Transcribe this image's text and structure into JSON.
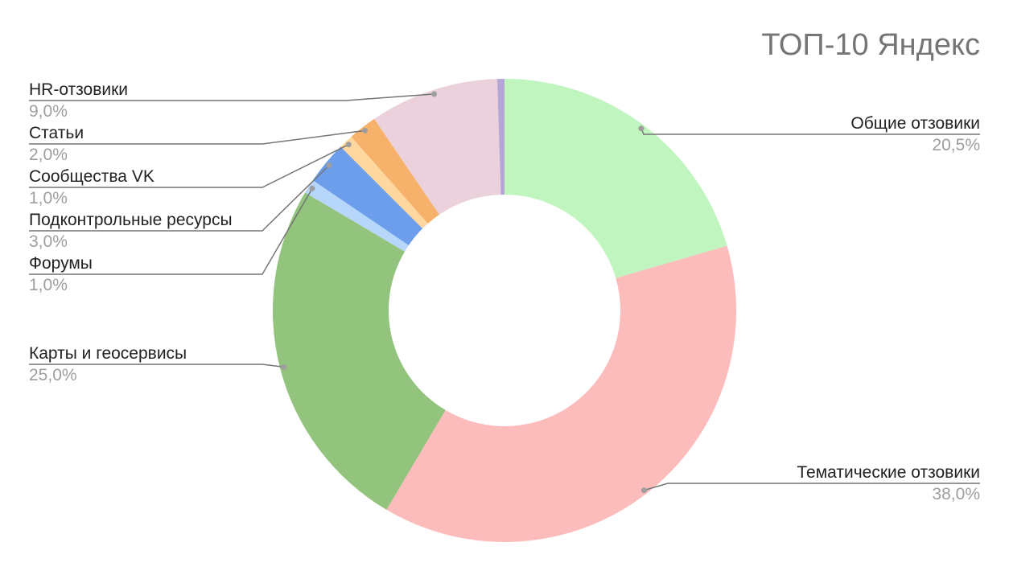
{
  "chart_data": {
    "type": "pie",
    "title": "ТОП-10 Яндекс",
    "donut": true,
    "slices": [
      {
        "label": "Общие отзовики",
        "value": 20.5,
        "value_label": "20,5%",
        "color": "#c0f5bf"
      },
      {
        "label": "Тематические отзовики",
        "value": 38.0,
        "value_label": "38,0%",
        "color": "#fdbcbc"
      },
      {
        "label": "Карты и геосервисы",
        "value": 25.0,
        "value_label": "25,0%",
        "color": "#93c47d"
      },
      {
        "label": "Форумы",
        "value": 1.0,
        "value_label": "1,0%",
        "color": "#b6d7fa"
      },
      {
        "label": "Подконтрольные ресурсы",
        "value": 3.0,
        "value_label": "3,0%",
        "color": "#6d9eeb"
      },
      {
        "label": "Сообщества VK",
        "value": 1.0,
        "value_label": "1,0%",
        "color": "#ffd79f"
      },
      {
        "label": "Статьи",
        "value": 2.0,
        "value_label": "2,0%",
        "color": "#f6b26b"
      },
      {
        "label": "HR-отзовики",
        "value": 9.0,
        "value_label": "9,0%",
        "color": "#ead1dc"
      },
      {
        "label": "",
        "value": 0.5,
        "value_label": "",
        "color": "#b4a7d6"
      }
    ],
    "legend": "none"
  }
}
